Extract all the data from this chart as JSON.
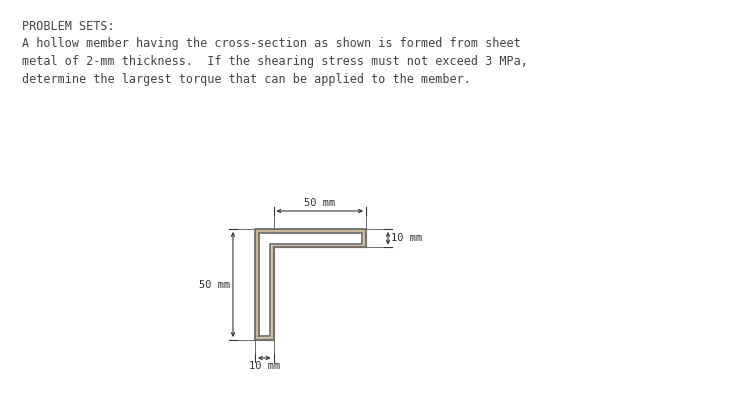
{
  "title_line1": "PROBLEM SETS:",
  "problem_text": "A hollow member having the cross-section as shown is formed from sheet\nmetal of 2-mm thickness.  If the shearing stress must not exceed 3 MPa,\ndetermine the largest torque that can be applied to the member.",
  "background_color": "#ffffff",
  "text_color": "#444444",
  "shape_fill_color": "#c8b89a",
  "shape_edge_color": "#666666",
  "dim_line_color": "#333333",
  "dim_50mm_top_label": "50 mm",
  "dim_50mm_left_label": "50 mm",
  "dim_10mm_right_label": "10 mm",
  "dim_10mm_bottom_label": "10 mm",
  "fig_width": 7.5,
  "fig_height": 4.15,
  "dpi": 100,
  "title_fontsize": 8.5,
  "body_fontsize": 8.5,
  "dim_fontsize": 7.5
}
